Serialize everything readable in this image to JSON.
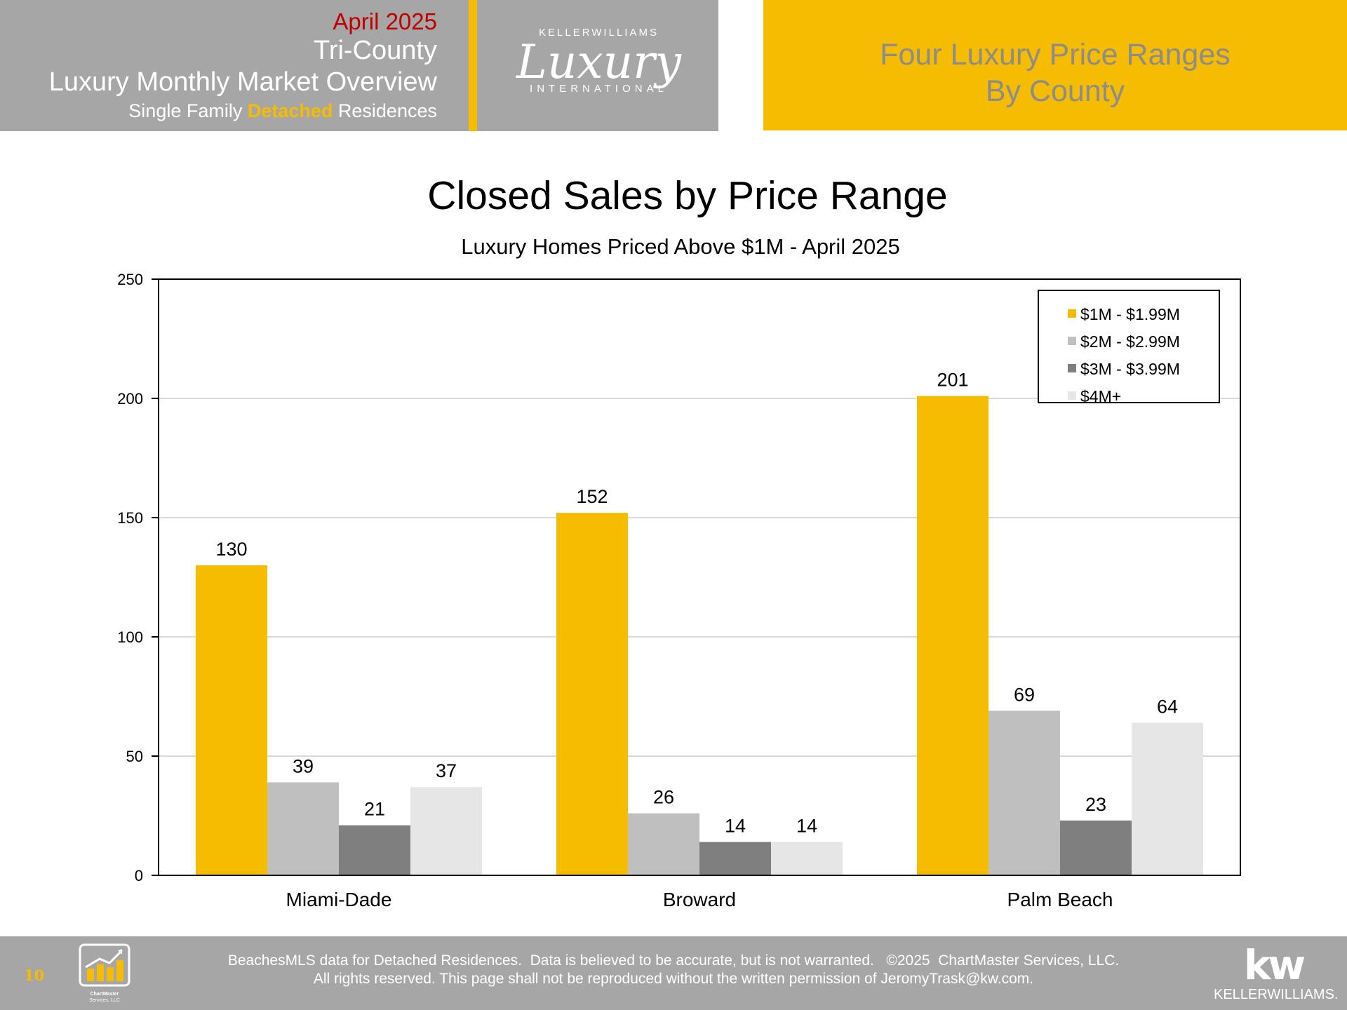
{
  "header": {
    "date": "April 2025",
    "region": "Tri-County",
    "overview": "Luxury Monthly Market Overview",
    "sub_prefix": "Single Family ",
    "sub_highlight": "Detached",
    "sub_suffix": " Residences",
    "right_line1": "Four Luxury Price Ranges",
    "right_line2": "By County"
  },
  "logo": {
    "brand_top": "KELLERWILLIAMS",
    "brand_script": "Luxury",
    "brand_bottom": "INTERNATIONAL"
  },
  "colors": {
    "accent": "#f5bc00",
    "header_gray": "#a6a6a6",
    "date_red": "#c00000"
  },
  "chart_data": {
    "type": "bar",
    "title": "Closed Sales by Price Range",
    "subtitle": "Luxury Homes Priced Above $1M - April 2025",
    "categories": [
      "Miami-Dade",
      "Broward",
      "Palm Beach"
    ],
    "series": [
      {
        "name": "$1M - $1.99M",
        "color": "#f5bc00",
        "values": [
          130,
          152,
          201
        ]
      },
      {
        "name": "$2M - $2.99M",
        "color": "#bfbfbf",
        "values": [
          39,
          26,
          69
        ]
      },
      {
        "name": "$3M - $3.99M",
        "color": "#7f7f7f",
        "values": [
          21,
          14,
          23
        ]
      },
      {
        "name": "$4M+",
        "color": "#e6e6e6",
        "values": [
          37,
          14,
          64
        ]
      }
    ],
    "ylim": [
      0,
      250
    ],
    "yticks": [
      "0",
      "50",
      "100",
      "150",
      "200",
      "250"
    ],
    "grid": true,
    "legend": "top-right",
    "data_labels": true
  },
  "footer": {
    "page_number": "10",
    "line1": "BeachesMLS data for Detached Residences.  Data is believed to be accurate, but is not warranted.   ©2025  ChartMaster Services, LLC.",
    "line2": "All rights reserved. This page shall not be reproduced without the written permission of JeromyTrask@kw.com.",
    "cm_logo_text": "ChartMaster Services, LLC",
    "kw_mark": "kw",
    "kw_word": "KELLERWILLIAMS."
  }
}
